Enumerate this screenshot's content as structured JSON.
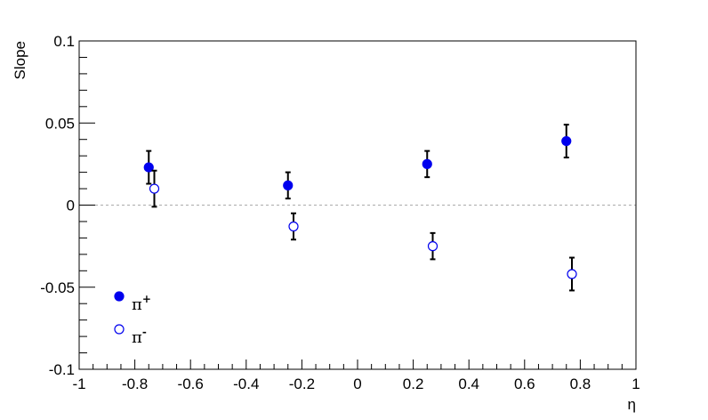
{
  "chart_data": {
    "type": "scatter",
    "xlabel": "η",
    "ylabel": "Slope",
    "xlim": [
      -1,
      1
    ],
    "ylim": [
      -0.1,
      0.1
    ],
    "x_ticks": [
      -1,
      -0.8,
      -0.6,
      -0.4,
      -0.2,
      0,
      0.2,
      0.4,
      0.6,
      0.8,
      1
    ],
    "x_tick_labels": [
      "-1",
      "-0.8",
      "-0.6",
      "-0.4",
      "-0.2",
      "0",
      "0.2",
      "0.4",
      "0.6",
      "0.8",
      "1"
    ],
    "y_ticks": [
      -0.1,
      -0.05,
      0,
      0.05,
      0.1
    ],
    "y_tick_labels": [
      "-0.1",
      "-0.05",
      "0",
      "0.05",
      "0.1"
    ],
    "reference_line": {
      "y": 0,
      "style": "dotted"
    },
    "legend_placement": "bottom-left",
    "series": [
      {
        "name": "π⁺",
        "label_base": "π",
        "label_sup": "+",
        "marker": "filled-circle",
        "color": "#0000ee",
        "points": [
          {
            "x": -0.75,
            "y": 0.023,
            "err": 0.01
          },
          {
            "x": -0.25,
            "y": 0.012,
            "err": 0.008
          },
          {
            "x": 0.25,
            "y": 0.025,
            "err": 0.008
          },
          {
            "x": 0.75,
            "y": 0.039,
            "err": 0.01
          }
        ]
      },
      {
        "name": "π⁻",
        "label_base": "π",
        "label_sup": "-",
        "marker": "open-circle",
        "color": "#0000ee",
        "points": [
          {
            "x": -0.73,
            "y": 0.01,
            "err": 0.011
          },
          {
            "x": -0.23,
            "y": -0.013,
            "err": 0.008
          },
          {
            "x": 0.27,
            "y": -0.025,
            "err": 0.008
          },
          {
            "x": 0.77,
            "y": -0.042,
            "err": 0.01
          }
        ]
      }
    ]
  }
}
